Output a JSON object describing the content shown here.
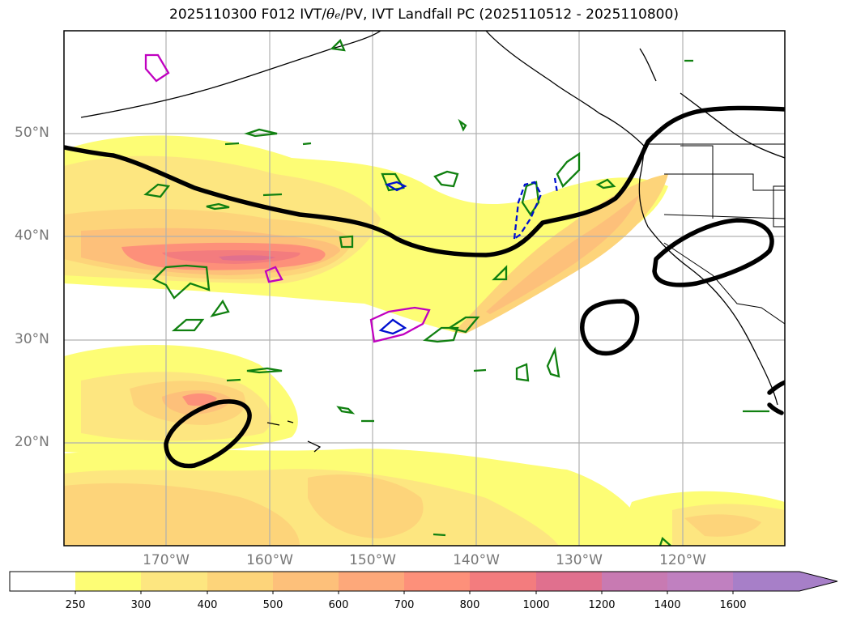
{
  "title": {
    "prefix": "2025110300 F012 IVT/",
    "theta": "θ",
    "theta_sub": "e",
    "suffix": "/PV, IVT Landfall PC (2025110512 - 2025110800)"
  },
  "lat_labels": [
    "50°N",
    "40°N",
    "30°N",
    "20°N"
  ],
  "lon_labels": [
    "170°W",
    "160°W",
    "150°W",
    "140°W",
    "130°W",
    "120°W"
  ],
  "colorbar": {
    "levels": [
      "250",
      "300",
      "400",
      "500",
      "600",
      "700",
      "800",
      "1000",
      "1200",
      "1400",
      "1600"
    ],
    "colors": [
      "#ffffff",
      "#fdfd75",
      "#fde680",
      "#fdd47a",
      "#fdc07a",
      "#fda87a",
      "#fd907a",
      "#f37c7e",
      "#e0708e",
      "#c87ab2",
      "#a77fc8"
    ],
    "extend": "max"
  },
  "map_extent": {
    "lon": [
      -180,
      -110
    ],
    "lat": [
      10,
      60
    ]
  }
}
